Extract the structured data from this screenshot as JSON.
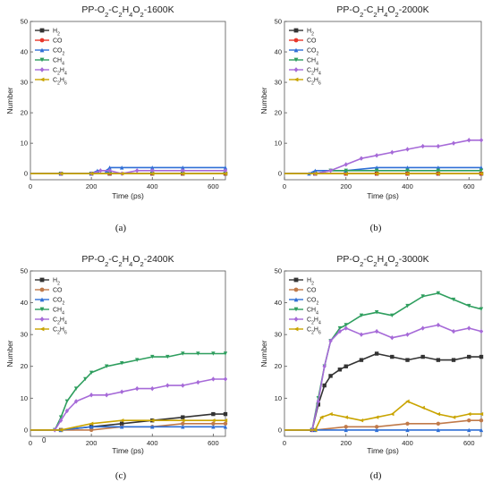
{
  "chart_data": [
    {
      "type": "line",
      "panel_label": "(a)",
      "title_parts": [
        "PP-O",
        "2",
        "-C",
        "2",
        "H",
        "4",
        "O",
        "2",
        "-1600K"
      ],
      "xlabel": "Time (ps)",
      "ylabel": "Number",
      "xlim": [
        0,
        640
      ],
      "ylim": [
        -2,
        50
      ],
      "xticks": [
        "0",
        "200",
        "400",
        "600"
      ],
      "yticks": [
        "0",
        "10",
        "20",
        "30",
        "40",
        "50"
      ],
      "legend_position": "top-left",
      "series": [
        {
          "name_parts": [
            "H",
            "2"
          ],
          "color": "#333333",
          "marker": "square",
          "x": [
            0,
            100,
            200,
            260,
            400,
            500,
            640
          ],
          "y": [
            0,
            0,
            0,
            0,
            0,
            0,
            0
          ]
        },
        {
          "name_parts": [
            "CO"
          ],
          "color": "#e8372c",
          "marker": "circle",
          "x": [
            0,
            100,
            200,
            260,
            400,
            500,
            640
          ],
          "y": [
            0,
            0,
            0,
            0,
            0,
            0,
            0
          ]
        },
        {
          "name_parts": [
            "CO",
            "2"
          ],
          "color": "#2f6fd6",
          "marker": "triangle-up",
          "x": [
            0,
            100,
            200,
            220,
            250,
            260,
            300,
            400,
            500,
            640
          ],
          "y": [
            0,
            0,
            0,
            1,
            1,
            2,
            2,
            2,
            2,
            2
          ]
        },
        {
          "name_parts": [
            "CH",
            "4"
          ],
          "color": "#2e9e5e",
          "marker": "triangle-down",
          "x": [
            0,
            100,
            200,
            260,
            400,
            500,
            640
          ],
          "y": [
            0,
            0,
            0,
            0,
            0,
            0,
            0
          ]
        },
        {
          "name_parts": [
            "C",
            "2",
            "H",
            "4"
          ],
          "color": "#a66ad8",
          "marker": "diamond",
          "x": [
            0,
            100,
            200,
            230,
            260,
            300,
            350,
            400,
            500,
            640
          ],
          "y": [
            0,
            0,
            0,
            1,
            1,
            0,
            1,
            1,
            1,
            1
          ]
        },
        {
          "name_parts": [
            "C",
            "2",
            "H",
            "6"
          ],
          "color": "#c9a400",
          "marker": "triangle-left",
          "x": [
            0,
            100,
            200,
            300,
            400,
            500,
            640
          ],
          "y": [
            0,
            0,
            0,
            0,
            0,
            0,
            0
          ]
        }
      ]
    },
    {
      "type": "line",
      "panel_label": "(b)",
      "title_parts": [
        "PP-O",
        "2",
        "-C",
        "2",
        "H",
        "4",
        "O",
        "2",
        "-2000K"
      ],
      "xlabel": "Time (ps)",
      "ylabel": "Number",
      "xlim": [
        0,
        640
      ],
      "ylim": [
        -2,
        50
      ],
      "xticks": [
        "0",
        "200",
        "400",
        "600"
      ],
      "yticks": [
        "0",
        "10",
        "20",
        "30",
        "40",
        "50"
      ],
      "legend_position": "top-left",
      "series": [
        {
          "name_parts": [
            "H",
            "2"
          ],
          "color": "#333333",
          "marker": "square",
          "x": [
            0,
            100,
            200,
            300,
            400,
            500,
            640
          ],
          "y": [
            0,
            0,
            0,
            0,
            0,
            0,
            0
          ]
        },
        {
          "name_parts": [
            "CO"
          ],
          "color": "#e8372c",
          "marker": "circle",
          "x": [
            0,
            100,
            200,
            300,
            400,
            500,
            640
          ],
          "y": [
            0,
            0,
            0,
            0,
            0,
            0,
            0
          ]
        },
        {
          "name_parts": [
            "CO",
            "2"
          ],
          "color": "#2f6fd6",
          "marker": "triangle-up",
          "x": [
            0,
            80,
            100,
            200,
            300,
            400,
            500,
            640
          ],
          "y": [
            0,
            0,
            1,
            1,
            2,
            2,
            2,
            2
          ]
        },
        {
          "name_parts": [
            "CH",
            "4"
          ],
          "color": "#2e9e5e",
          "marker": "triangle-down",
          "x": [
            0,
            100,
            150,
            200,
            300,
            400,
            500,
            640
          ],
          "y": [
            0,
            0,
            1,
            1,
            1,
            1,
            1,
            1
          ]
        },
        {
          "name_parts": [
            "C",
            "2",
            "H",
            "4"
          ],
          "color": "#a66ad8",
          "marker": "diamond",
          "x": [
            0,
            100,
            150,
            200,
            250,
            300,
            350,
            400,
            450,
            500,
            550,
            600,
            640
          ],
          "y": [
            0,
            0,
            1,
            3,
            5,
            6,
            7,
            8,
            9,
            9,
            10,
            11,
            11
          ]
        },
        {
          "name_parts": [
            "C",
            "2",
            "H",
            "6"
          ],
          "color": "#c9a400",
          "marker": "triangle-left",
          "x": [
            0,
            100,
            200,
            300,
            400,
            500,
            640
          ],
          "y": [
            0,
            0,
            0,
            0,
            0,
            0,
            0
          ]
        }
      ]
    },
    {
      "type": "line",
      "panel_label": "(c)",
      "title_parts": [
        "PP-O",
        "2",
        "-C",
        "2",
        "H",
        "4",
        "O",
        "2",
        "-2400K"
      ],
      "xlabel": "Time (ps)",
      "ylabel": "Number",
      "xlim": [
        0,
        640
      ],
      "ylim": [
        -2,
        50
      ],
      "xticks": [
        "0",
        "200",
        "400",
        "600"
      ],
      "yticks": [
        "0",
        "10",
        "20",
        "30",
        "40",
        "50"
      ],
      "legend_position": "top-left",
      "series": [
        {
          "name_parts": [
            "H",
            "2"
          ],
          "color": "#333333",
          "marker": "square",
          "x": [
            0,
            100,
            200,
            300,
            400,
            500,
            600,
            640
          ],
          "y": [
            0,
            0,
            1,
            2,
            3,
            4,
            5,
            5
          ]
        },
        {
          "name_parts": [
            "CO"
          ],
          "color": "#c07a4a",
          "marker": "circle",
          "x": [
            0,
            100,
            200,
            300,
            400,
            500,
            600,
            640
          ],
          "y": [
            0,
            0,
            0,
            1,
            1,
            2,
            2,
            2
          ]
        },
        {
          "name_parts": [
            "CO",
            "2"
          ],
          "color": "#2f6fd6",
          "marker": "triangle-up",
          "x": [
            0,
            100,
            200,
            300,
            400,
            500,
            600,
            640
          ],
          "y": [
            0,
            0,
            1,
            1,
            1,
            1,
            1,
            1
          ]
        },
        {
          "name_parts": [
            "CH",
            "4"
          ],
          "color": "#2e9e5e",
          "marker": "triangle-down",
          "x": [
            0,
            80,
            100,
            120,
            150,
            180,
            200,
            250,
            300,
            350,
            400,
            450,
            500,
            550,
            600,
            640
          ],
          "y": [
            0,
            0,
            4,
            9,
            13,
            16,
            18,
            20,
            21,
            22,
            23,
            23,
            24,
            24,
            24,
            24
          ]
        },
        {
          "name_parts": [
            "C",
            "2",
            "H",
            "4"
          ],
          "color": "#a66ad8",
          "marker": "diamond",
          "x": [
            0,
            80,
            100,
            120,
            150,
            200,
            250,
            300,
            350,
            400,
            450,
            500,
            550,
            600,
            640
          ],
          "y": [
            0,
            0,
            3,
            6,
            9,
            11,
            11,
            12,
            13,
            13,
            14,
            14,
            15,
            16,
            16
          ]
        },
        {
          "name_parts": [
            "C",
            "2",
            "H",
            "6"
          ],
          "color": "#c9a400",
          "marker": "triangle-left",
          "x": [
            0,
            100,
            200,
            300,
            400,
            500,
            600,
            640
          ],
          "y": [
            0,
            0,
            2,
            3,
            3,
            3,
            3,
            3
          ]
        }
      ]
    },
    {
      "type": "line",
      "panel_label": "(d)",
      "title_parts": [
        "PP-O",
        "2",
        "-C",
        "2",
        "H",
        "4",
        "O",
        "2",
        "-3000K"
      ],
      "xlabel": "Time (ps)",
      "ylabel": "Number",
      "xlim": [
        0,
        640
      ],
      "ylim": [
        -2,
        50
      ],
      "xticks": [
        "0",
        "200",
        "400",
        "600"
      ],
      "yticks": [
        "0",
        "10",
        "20",
        "30",
        "40",
        "50"
      ],
      "legend_position": "top-left",
      "series": [
        {
          "name_parts": [
            "H",
            "2"
          ],
          "color": "#333333",
          "marker": "square",
          "x": [
            0,
            90,
            110,
            130,
            150,
            180,
            200,
            250,
            300,
            350,
            400,
            450,
            500,
            550,
            600,
            640
          ],
          "y": [
            0,
            0,
            8,
            14,
            17,
            19,
            20,
            22,
            24,
            23,
            22,
            23,
            22,
            22,
            23,
            23
          ]
        },
        {
          "name_parts": [
            "CO"
          ],
          "color": "#c07a4a",
          "marker": "circle",
          "x": [
            0,
            100,
            200,
            300,
            400,
            500,
            600,
            640
          ],
          "y": [
            0,
            0,
            1,
            1,
            2,
            2,
            3,
            3
          ]
        },
        {
          "name_parts": [
            "CO",
            "2"
          ],
          "color": "#2f6fd6",
          "marker": "triangle-up",
          "x": [
            0,
            100,
            200,
            300,
            400,
            500,
            600,
            640
          ],
          "y": [
            0,
            0,
            0,
            0,
            0,
            0,
            0,
            0
          ]
        },
        {
          "name_parts": [
            "CH",
            "4"
          ],
          "color": "#2e9e5e",
          "marker": "triangle-down",
          "x": [
            0,
            90,
            110,
            130,
            150,
            180,
            200,
            250,
            300,
            350,
            400,
            450,
            500,
            550,
            600,
            640
          ],
          "y": [
            0,
            0,
            10,
            20,
            28,
            32,
            33,
            36,
            37,
            36,
            39,
            42,
            43,
            41,
            39,
            38
          ]
        },
        {
          "name_parts": [
            "C",
            "2",
            "H",
            "4"
          ],
          "color": "#a66ad8",
          "marker": "diamond",
          "x": [
            0,
            90,
            110,
            130,
            150,
            180,
            200,
            250,
            300,
            350,
            400,
            450,
            500,
            550,
            600,
            640
          ],
          "y": [
            0,
            0,
            9,
            20,
            28,
            31,
            32,
            30,
            31,
            29,
            30,
            32,
            33,
            31,
            32,
            31
          ]
        },
        {
          "name_parts": [
            "C",
            "2",
            "H",
            "6"
          ],
          "color": "#c9a400",
          "marker": "triangle-left",
          "x": [
            0,
            100,
            120,
            150,
            200,
            250,
            300,
            350,
            400,
            450,
            500,
            550,
            600,
            640
          ],
          "y": [
            0,
            0,
            4,
            5,
            4,
            3,
            4,
            5,
            9,
            7,
            5,
            4,
            5,
            5
          ]
        }
      ]
    }
  ],
  "stray_label": "0"
}
